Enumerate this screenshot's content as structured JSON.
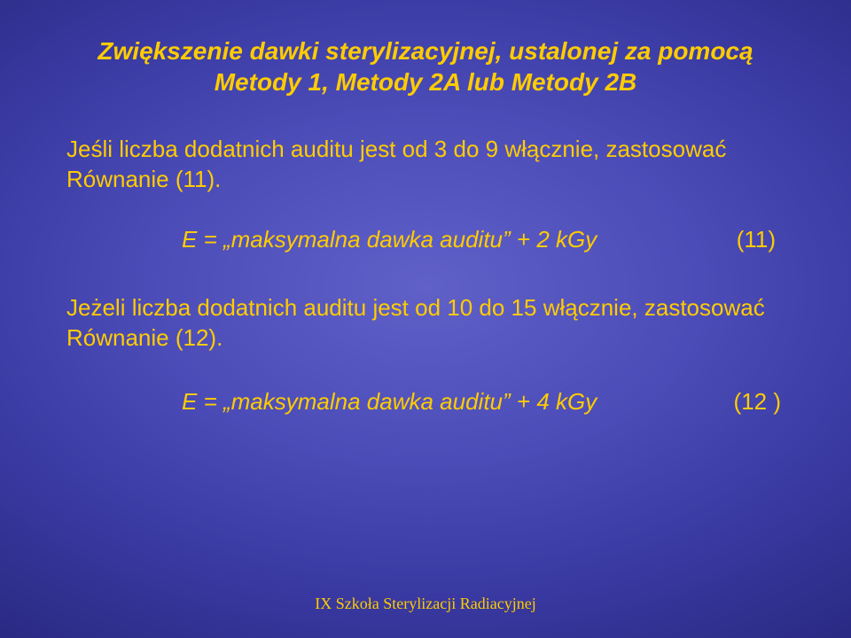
{
  "colors": {
    "title_color": "#ffcc00",
    "body_color": "#ffcc00",
    "footer_color": "#ffcc00"
  },
  "title": {
    "line1": "Zwiększenie dawki sterylizacyjnej, ustalonej za pomocą",
    "line2": "Metody 1, Metody 2A lub Metody 2B"
  },
  "para1": "Jeśli liczba dodatnich auditu jest od 3 do 9 włącznie, zastosować Równanie (11).",
  "eq1": {
    "prefix": "E = ",
    "quoted": "„maksymalna dawka auditu”",
    "suffix": "  + 2 kGy",
    "num": "(11)"
  },
  "para2": "Jeżeli liczba dodatnich auditu jest od 10 do 15 włącznie, zastosować Równanie (12).",
  "eq2": {
    "prefix": "E = ",
    "quoted": "„maksymalna dawka auditu”",
    "suffix": "  + 4 kGy",
    "num": "(12 )"
  },
  "footer": "IX Szkoła Sterylizacji Radiacyjnej"
}
